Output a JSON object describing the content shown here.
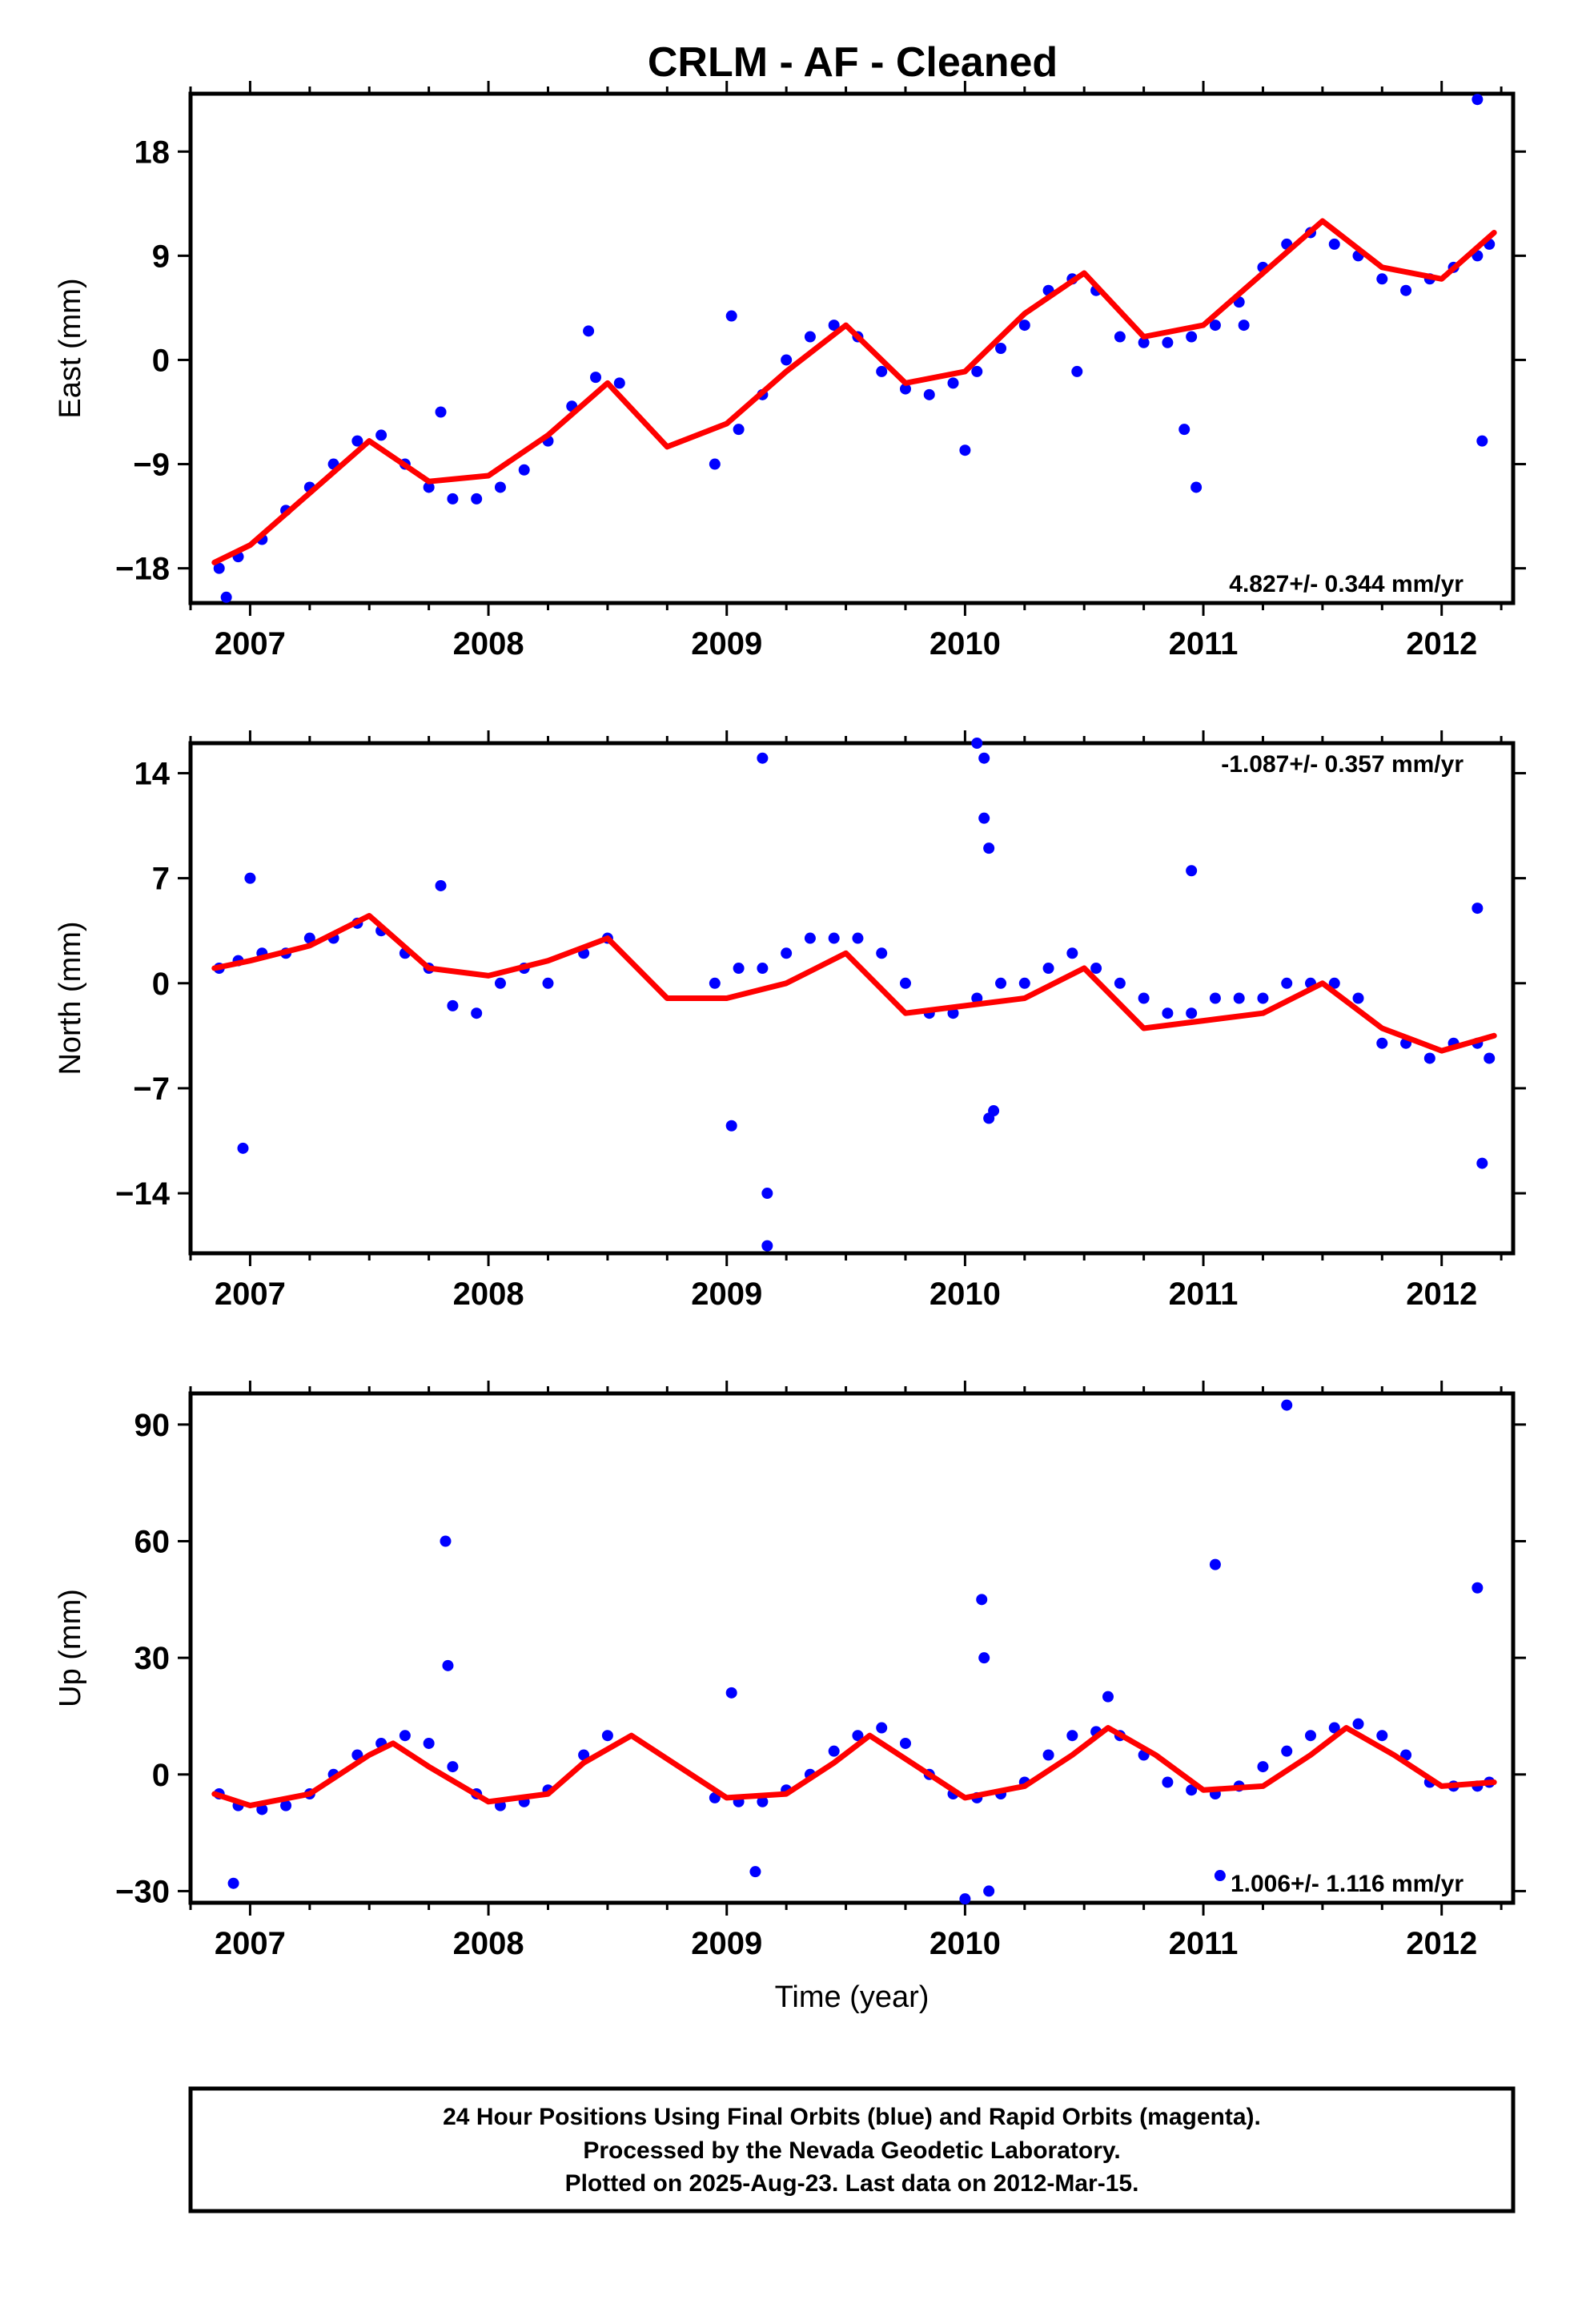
{
  "title": "CRLM  - AF - Cleaned",
  "chart_data": [
    {
      "type": "scatter",
      "ylabel": "East (mm)",
      "xlabel": "",
      "xlim": [
        2006.75,
        2012.3
      ],
      "ylim": [
        -21,
        23
      ],
      "x_ticks": [
        2007,
        2008,
        2009,
        2010,
        2011,
        2012
      ],
      "y_ticks": [
        -18,
        -9,
        0,
        9,
        18
      ],
      "rate_label": "4.827+/- 0.344 mm/yr",
      "rate_position": "bottom-right",
      "series": [
        {
          "marker": "point",
          "color": "#0000ff",
          "x": [
            2006.87,
            2006.95,
            2007.05,
            2007.15,
            2007.25,
            2007.35,
            2007.45,
            2007.55,
            2007.65,
            2007.75,
            2007.85,
            2007.95,
            2008.05,
            2008.15,
            2008.25,
            2008.35,
            2008.45,
            2008.55,
            2008.95,
            2009.05,
            2009.15,
            2009.25,
            2009.35,
            2009.45,
            2009.55,
            2009.65,
            2009.75,
            2009.85,
            2009.95,
            2010.05,
            2010.15,
            2010.25,
            2010.35,
            2010.45,
            2010.55,
            2010.65,
            2010.75,
            2010.85,
            2010.95,
            2011.05,
            2011.15,
            2011.25,
            2011.35,
            2011.45,
            2011.55,
            2011.65,
            2011.75,
            2011.85,
            2011.95,
            2012.05,
            2012.15,
            2012.2
          ],
          "y": [
            -18,
            -17,
            -15.5,
            -13,
            -11,
            -9,
            -7,
            -6.5,
            -9,
            -11,
            -12,
            -12,
            -11,
            -9.5,
            -7,
            -4,
            -1.5,
            -2,
            -9,
            -6,
            -3,
            0,
            2,
            3,
            2,
            -1,
            -2.5,
            -3,
            -2,
            -1,
            1,
            3,
            6,
            7,
            6,
            2,
            1.5,
            1.5,
            2,
            3,
            5,
            8,
            10,
            11,
            10,
            9,
            7,
            6,
            7,
            8,
            9,
            10
          ]
        },
        {
          "marker": "point",
          "color": "#0000ff",
          "name": "outliers",
          "x": [
            2006.9,
            2007.8,
            2008.42,
            2009.02,
            2010.0,
            2010.47,
            2010.92,
            2010.97,
            2011.17,
            2012.15,
            2012.17
          ],
          "y": [
            -20.5,
            -4.5,
            2.5,
            3.8,
            -7.8,
            -1,
            -6,
            -11,
            3,
            22.5,
            -7
          ]
        },
        {
          "marker": "line",
          "color": "#ff0000",
          "name": "model",
          "x": [
            2006.85,
            2007.0,
            2007.25,
            2007.5,
            2007.75,
            2008.0,
            2008.25,
            2008.5,
            2008.75,
            2009.0,
            2009.25,
            2009.5,
            2009.75,
            2010.0,
            2010.25,
            2010.5,
            2010.75,
            2011.0,
            2011.25,
            2011.5,
            2011.75,
            2012.0,
            2012.22
          ],
          "y": [
            -17.5,
            -16,
            -11.5,
            -7,
            -10.5,
            -10,
            -6.5,
            -2,
            -7.5,
            -5.5,
            -1,
            3,
            -2,
            -1,
            4,
            7.5,
            2,
            3,
            7.5,
            12,
            8,
            7,
            11
          ]
        }
      ]
    },
    {
      "type": "scatter",
      "ylabel": "North (mm)",
      "xlabel": "",
      "xlim": [
        2006.75,
        2012.3
      ],
      "ylim": [
        -18,
        16
      ],
      "x_ticks": [
        2007,
        2008,
        2009,
        2010,
        2011,
        2012
      ],
      "y_ticks": [
        -14,
        -7,
        0,
        7,
        14
      ],
      "rate_label": "-1.087+/- 0.357 mm/yr",
      "rate_position": "top-right",
      "series": [
        {
          "marker": "point",
          "color": "#0000ff",
          "x": [
            2006.87,
            2006.95,
            2007.05,
            2007.15,
            2007.25,
            2007.35,
            2007.45,
            2007.55,
            2007.65,
            2007.75,
            2007.85,
            2007.95,
            2008.05,
            2008.15,
            2008.25,
            2008.4,
            2008.5,
            2008.95,
            2009.05,
            2009.15,
            2009.25,
            2009.35,
            2009.45,
            2009.55,
            2009.65,
            2009.75,
            2009.85,
            2009.95,
            2010.05,
            2010.15,
            2010.25,
            2010.35,
            2010.45,
            2010.55,
            2010.65,
            2010.75,
            2010.85,
            2010.95,
            2011.05,
            2011.15,
            2011.25,
            2011.35,
            2011.45,
            2011.55,
            2011.65,
            2011.75,
            2011.85,
            2011.95,
            2012.05,
            2012.15,
            2012.2
          ],
          "y": [
            1,
            1.5,
            2,
            2,
            3,
            3,
            4,
            3.5,
            2,
            1,
            -1.5,
            -2,
            0,
            1,
            0,
            2,
            3,
            0,
            1,
            1,
            2,
            3,
            3,
            3,
            2,
            0,
            -2,
            -2,
            -1,
            0,
            0,
            1,
            2,
            1,
            0,
            -1,
            -2,
            -2,
            -1,
            -1,
            -1,
            0,
            0,
            0,
            -1,
            -4,
            -4,
            -5,
            -4,
            -4,
            -5
          ]
        },
        {
          "marker": "point",
          "color": "#0000ff",
          "name": "outliers",
          "x": [
            2006.97,
            2007.0,
            2007.8,
            2009.02,
            2009.15,
            2009.17,
            2009.17,
            2010.05,
            2010.08,
            2010.08,
            2010.1,
            2010.1,
            2010.12,
            2010.95,
            2012.15,
            2012.17
          ],
          "y": [
            -11,
            7,
            6.5,
            -9.5,
            15,
            -14,
            -17.5,
            16,
            15,
            11,
            9,
            -9,
            -8.5,
            7.5,
            5,
            -12
          ]
        },
        {
          "marker": "line",
          "color": "#ff0000",
          "name": "model",
          "x": [
            2006.85,
            2007.0,
            2007.25,
            2007.5,
            2007.75,
            2008.0,
            2008.25,
            2008.5,
            2008.75,
            2009.0,
            2009.25,
            2009.5,
            2009.75,
            2010.0,
            2010.25,
            2010.5,
            2010.75,
            2011.0,
            2011.25,
            2011.5,
            2011.75,
            2012.0,
            2012.22
          ],
          "y": [
            1,
            1.5,
            2.5,
            4.5,
            1,
            0.5,
            1.5,
            3,
            -1,
            -1,
            0,
            2,
            -2,
            -1.5,
            -1,
            1,
            -3,
            -2.5,
            -2,
            0,
            -3,
            -4.5,
            -3.5
          ]
        }
      ]
    },
    {
      "type": "scatter",
      "ylabel": "Up (mm)",
      "xlabel": "Time (year)",
      "xlim": [
        2006.75,
        2012.3
      ],
      "ylim": [
        -33,
        98
      ],
      "x_ticks": [
        2007,
        2008,
        2009,
        2010,
        2011,
        2012
      ],
      "y_ticks": [
        -30,
        0,
        30,
        60,
        90
      ],
      "rate_label": "1.006+/- 1.116 mm/yr",
      "rate_position": "bottom-right",
      "series": [
        {
          "marker": "point",
          "color": "#0000ff",
          "x": [
            2006.87,
            2006.95,
            2007.05,
            2007.15,
            2007.25,
            2007.35,
            2007.45,
            2007.55,
            2007.65,
            2007.75,
            2007.85,
            2007.95,
            2008.05,
            2008.15,
            2008.25,
            2008.4,
            2008.5,
            2008.95,
            2009.05,
            2009.15,
            2009.25,
            2009.35,
            2009.45,
            2009.55,
            2009.65,
            2009.75,
            2009.85,
            2009.95,
            2010.05,
            2010.15,
            2010.25,
            2010.35,
            2010.45,
            2010.55,
            2010.65,
            2010.75,
            2010.85,
            2010.95,
            2011.05,
            2011.15,
            2011.25,
            2011.35,
            2011.45,
            2011.55,
            2011.65,
            2011.75,
            2011.85,
            2011.95,
            2012.05,
            2012.15,
            2012.2
          ],
          "y": [
            -5,
            -8,
            -9,
            -8,
            -5,
            0,
            5,
            8,
            10,
            8,
            2,
            -5,
            -8,
            -7,
            -4,
            5,
            10,
            -6,
            -7,
            -7,
            -4,
            0,
            6,
            10,
            12,
            8,
            0,
            -5,
            -6,
            -5,
            -2,
            5,
            10,
            11,
            10,
            5,
            -2,
            -4,
            -5,
            -3,
            2,
            6,
            10,
            12,
            13,
            10,
            5,
            -2,
            -3,
            -3,
            -2
          ]
        },
        {
          "marker": "point",
          "color": "#0000ff",
          "name": "outliers",
          "x": [
            2006.93,
            2007.82,
            2007.83,
            2009.02,
            2009.12,
            2010.0,
            2010.07,
            2010.08,
            2010.1,
            2010.6,
            2011.05,
            2011.07,
            2011.35,
            2012.15
          ],
          "y": [
            -28,
            60,
            28,
            21,
            -25,
            -32,
            45,
            30,
            -30,
            20,
            54,
            -26,
            95,
            48
          ]
        },
        {
          "marker": "line",
          "color": "#ff0000",
          "name": "model",
          "x": [
            2006.85,
            2007.0,
            2007.25,
            2007.5,
            2007.6,
            2007.75,
            2008.0,
            2008.25,
            2008.4,
            2008.6,
            2008.8,
            2009.0,
            2009.25,
            2009.45,
            2009.6,
            2009.8,
            2010.0,
            2010.25,
            2010.45,
            2010.6,
            2010.8,
            2011.0,
            2011.25,
            2011.45,
            2011.6,
            2011.8,
            2012.0,
            2012.22
          ],
          "y": [
            -5,
            -8,
            -5,
            5,
            8,
            2,
            -7,
            -5,
            3,
            10,
            2,
            -6,
            -5,
            3,
            10,
            2,
            -6,
            -3,
            5,
            12,
            5,
            -4,
            -3,
            5,
            12,
            5,
            -3,
            -2
          ]
        }
      ]
    }
  ],
  "footer": {
    "line1": "24 Hour Positions Using Final Orbits (blue) and Rapid Orbits (magenta).",
    "line2": "Processed by the Nevada Geodetic Laboratory.",
    "line3": "Plotted on 2025-Aug-23. Last data on 2012-Mar-15."
  }
}
